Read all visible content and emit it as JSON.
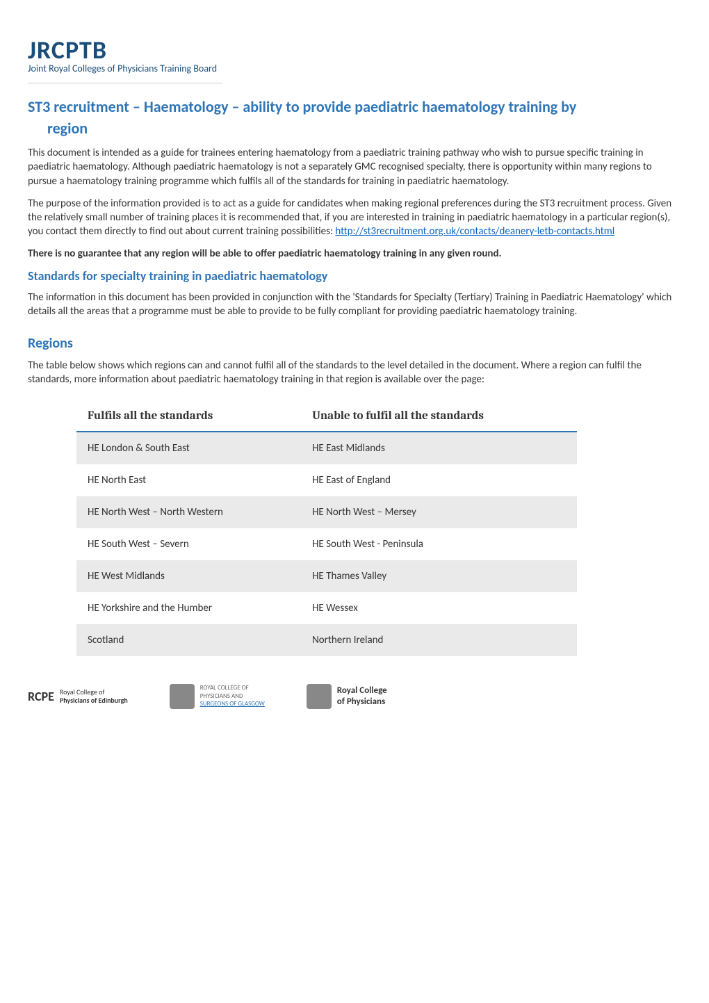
{
  "logo": {
    "title": "JRCPTB",
    "subtitle": "Joint Royal Colleges of Physicians Training Board"
  },
  "heading": {
    "line1": "ST3 recruitment – Haematology – ability to provide paediatric haematology training by",
    "line2": "region"
  },
  "para1": "This document is intended as a guide for trainees entering haematology from a paediatric training pathway who wish to pursue specific training in paediatric haematology. Although paediatric haematology is not a separately GMC recognised specialty, there is opportunity within many regions to pursue a haematology training programme which fulfils all of the standards for training in paediatric haematology.",
  "para2_before": "The purpose of the information provided is to act as a guide for candidates when making regional preferences during the ST3 recruitment process. Given the relatively small number of training places it is recommended that, if you are interested in training in paediatric haematology in a particular region(s), you contact them directly to find out about current training possibilities:  ",
  "para2_link": "http://st3recruitment.org.uk/contacts/deanery-letb-contacts.html",
  "bold_note": "There is no guarantee that any region will be able to offer paediatric haematology training in any given round.",
  "subheading1": "Standards for specialty training in paediatric haematology",
  "para3": "The information in this document has been provided in conjunction with the 'Standards for Specialty (Tertiary) Training in Paediatric Haematology' which details all the areas that a programme must be able to provide to be fully compliant for providing paediatric haematology training.",
  "section_heading": "Regions",
  "para4": "The table below shows which regions can and cannot fulfil all of the standards to the level detailed in the document. Where a region can fulfil the standards, more information about paediatric haematology training in that region is available over the page:",
  "table": {
    "header_left": "Fulfils all the standards",
    "header_right": "Unable to fulfil all the standards",
    "rows": [
      {
        "left": "HE London & South East",
        "right": "HE East Midlands"
      },
      {
        "left": "HE North East",
        "right": "HE East of England"
      },
      {
        "left": "HE North West – North Western",
        "right": "HE North West – Mersey"
      },
      {
        "left": "HE South West – Severn",
        "right": "HE South West - Peninsula"
      },
      {
        "left": "HE West Midlands",
        "right": "HE Thames Valley"
      },
      {
        "left": "HE Yorkshire and the Humber",
        "right": "HE Wessex"
      },
      {
        "left": "Scotland",
        "right": "Northern Ireland"
      }
    ]
  },
  "footer": {
    "rcpe_main": "RCPE",
    "rcpe_line1": "Royal College of",
    "rcpe_line2": "Physicians of Edinburgh",
    "glasgow_line1": "ROYAL COLLEGE OF",
    "glasgow_line2": "PHYSICIANS AND",
    "glasgow_line3": "SURGEONS OF GLASGOW",
    "rcp_line1": "Royal College",
    "rcp_line2": "of Physicians"
  },
  "colors": {
    "heading_blue": "#2f75b5",
    "logo_blue": "#1a4d7a",
    "link_blue": "#0563c1",
    "table_border": "#2f75b5",
    "row_odd_bg": "#eaeaea",
    "row_even_bg": "#ffffff",
    "text": "#333333"
  }
}
